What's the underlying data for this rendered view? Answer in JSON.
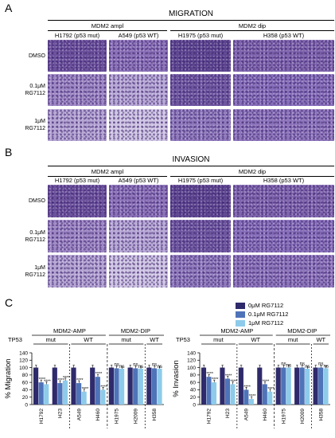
{
  "panel_a": {
    "letter": "A",
    "title": "MIGRATION",
    "group_left": "MDM2 ampl",
    "group_right": "MDM2 dip",
    "columns": [
      "H1792 (p53 mut)",
      "A549 (p53 WT)",
      "H1975 (p53 mut)",
      "H358 (p53 WT)"
    ],
    "rows": [
      "DMSO",
      "0.1μM\nRG7112",
      "1μM\nRG7112"
    ]
  },
  "panel_b": {
    "letter": "B",
    "title": "INVASION",
    "group_left": "MDM2 ampl",
    "group_right": "MDM2 dip",
    "columns": [
      "H1792 (p53 mut)",
      "A549 (p53 WT)",
      "H1975 (p53 mut)",
      "H358 (p53 WT)"
    ],
    "rows": [
      "DMSO",
      "0.1μM\nRG7112",
      "1μM\nRG7112"
    ]
  },
  "panel_c": {
    "letter": "C",
    "legend": [
      {
        "label": "0μM RG7112",
        "color": "#2e2a6b"
      },
      {
        "label": "0.1μM RG7112",
        "color": "#4f73b8"
      },
      {
        "label": "1μM RG7112",
        "color": "#8ecbea"
      }
    ]
  },
  "chart_data": [
    {
      "type": "bar",
      "ylabel": "% Migration",
      "ylim": [
        0,
        140
      ],
      "yticks": [
        0,
        20,
        40,
        60,
        80,
        100,
        120,
        140
      ],
      "categories": [
        "H1792",
        "H23",
        "A549",
        "H460",
        "H1975",
        "H2009",
        "H358"
      ],
      "group_labels": [
        "MDM2-AMP",
        "MDM2-DIP"
      ],
      "tp53_label": "TP53",
      "tp53_labels": [
        "mut",
        "WT",
        "mut",
        "WT"
      ],
      "series": [
        {
          "name": "0μM RG7112",
          "values": [
            100,
            100,
            100,
            100,
            100,
            100,
            100
          ]
        },
        {
          "name": "0.1μM RG7112",
          "values": [
            60,
            58,
            58,
            75,
            98,
            98,
            98
          ]
        },
        {
          "name": "1μM RG7112",
          "values": [
            55,
            65,
            35,
            40,
            97,
            97,
            97
          ]
        }
      ],
      "annotations": [
        {
          "index": 0,
          "series": 1,
          "text": "****"
        },
        {
          "index": 0,
          "series": 2,
          "text": "****"
        },
        {
          "index": 1,
          "series": 1,
          "text": "****"
        },
        {
          "index": 1,
          "series": 2,
          "text": "****"
        },
        {
          "index": 2,
          "series": 1,
          "text": "****"
        },
        {
          "index": 2,
          "series": 2,
          "text": "****"
        },
        {
          "index": 3,
          "series": 1,
          "text": "****"
        },
        {
          "index": 3,
          "series": 2,
          "text": "****"
        },
        {
          "index": 4,
          "series": 1,
          "text": "ns"
        },
        {
          "index": 4,
          "series": 2,
          "text": "ns"
        },
        {
          "index": 5,
          "series": 1,
          "text": "ns"
        },
        {
          "index": 5,
          "series": 2,
          "text": "ns"
        },
        {
          "index": 6,
          "series": 1,
          "text": "ns"
        },
        {
          "index": 6,
          "series": 2,
          "text": "ns"
        }
      ]
    },
    {
      "type": "bar",
      "ylabel": "% Invasion",
      "ylim": [
        0,
        140
      ],
      "yticks": [
        0,
        20,
        40,
        60,
        80,
        100,
        120,
        140
      ],
      "categories": [
        "H1792",
        "H23",
        "A549",
        "H460",
        "H1975",
        "H2009",
        "H358"
      ],
      "group_labels": [
        "MDM2-AMP",
        "MDM2-DIP"
      ],
      "tp53_label": "TP53",
      "tp53_labels": [
        "mut",
        "WT",
        "mut",
        "WT"
      ],
      "series": [
        {
          "name": "0μM RG7112",
          "values": [
            100,
            100,
            100,
            100,
            100,
            100,
            100
          ]
        },
        {
          "name": "0.1μM RG7112",
          "values": [
            75,
            70,
            40,
            55,
            100,
            100,
            100
          ]
        },
        {
          "name": "1μM RG7112",
          "values": [
            60,
            55,
            15,
            35,
            100,
            97,
            98
          ]
        }
      ],
      "annotations": [
        {
          "index": 0,
          "series": 1,
          "text": "****"
        },
        {
          "index": 0,
          "series": 2,
          "text": "****"
        },
        {
          "index": 1,
          "series": 1,
          "text": "****"
        },
        {
          "index": 1,
          "series": 2,
          "text": "****"
        },
        {
          "index": 2,
          "series": 1,
          "text": "****"
        },
        {
          "index": 2,
          "series": 2,
          "text": "****"
        },
        {
          "index": 3,
          "series": 1,
          "text": "****"
        },
        {
          "index": 3,
          "series": 2,
          "text": "****"
        },
        {
          "index": 4,
          "series": 1,
          "text": "ns"
        },
        {
          "index": 4,
          "series": 2,
          "text": "ns"
        },
        {
          "index": 5,
          "series": 1,
          "text": "ns"
        },
        {
          "index": 5,
          "series": 2,
          "text": "ns"
        },
        {
          "index": 6,
          "series": 1,
          "text": "ns"
        },
        {
          "index": 6,
          "series": 2,
          "text": "ns"
        }
      ]
    }
  ]
}
